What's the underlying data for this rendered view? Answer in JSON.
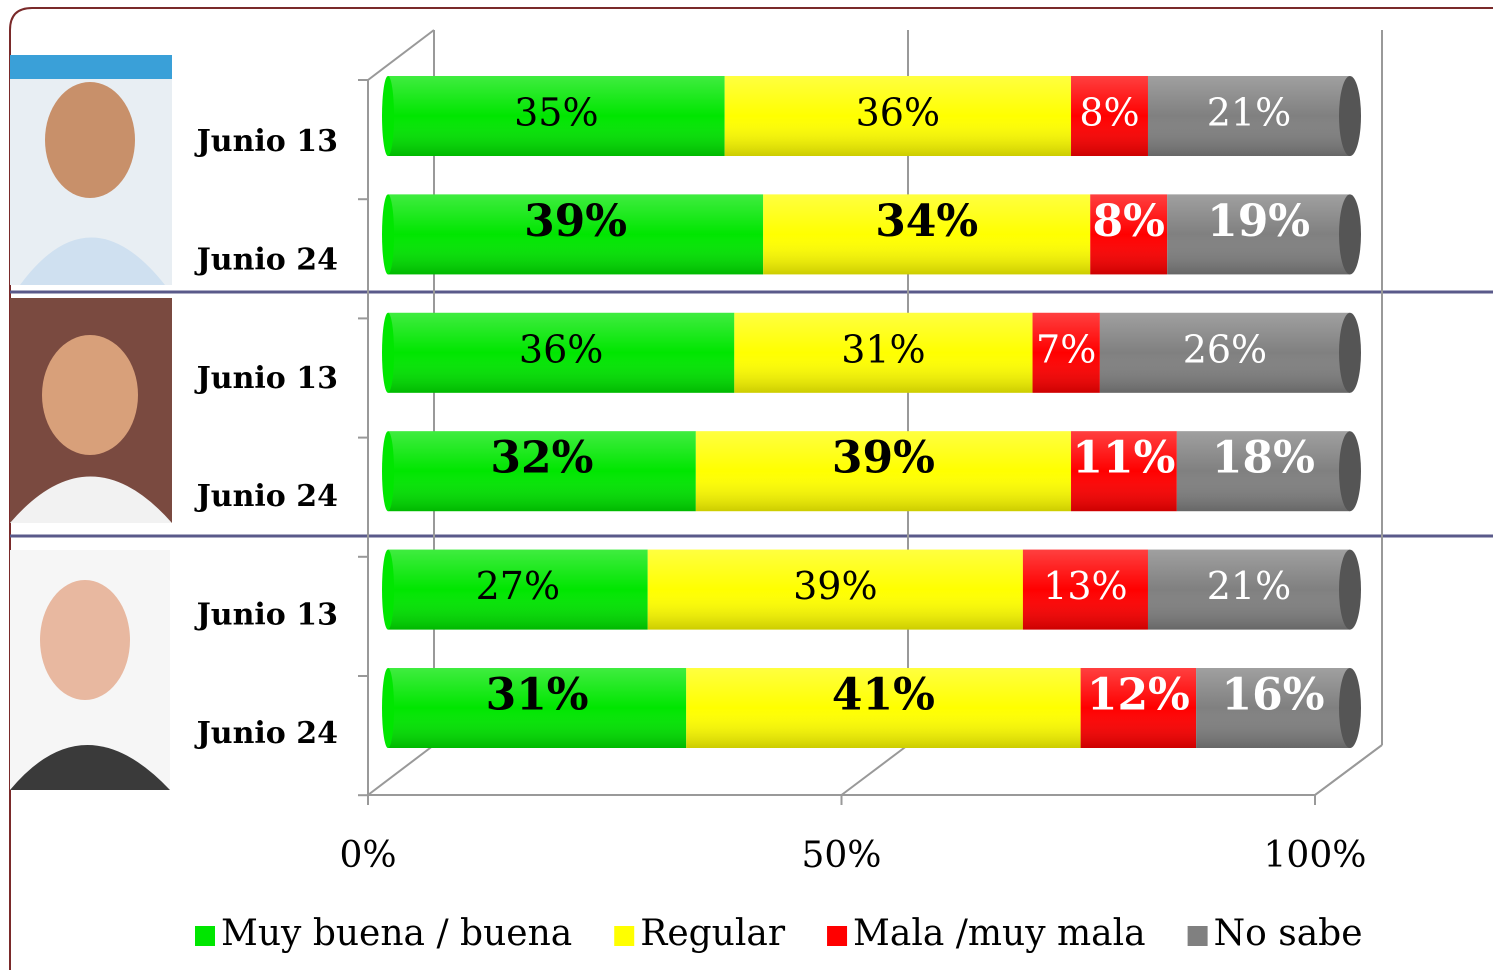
{
  "chart_data": {
    "type": "bar",
    "orientation": "horizontal",
    "stacked": true,
    "categories": [
      "Junio 13",
      "Junio 24",
      "Junio 13",
      "Junio 24",
      "Junio 13",
      "Junio 24"
    ],
    "series": [
      {
        "name": "Muy buena / buena",
        "color": "#00e600",
        "values": [
          35,
          39,
          36,
          32,
          27,
          31
        ],
        "value_labels": [
          "35%",
          "39%",
          "36%",
          "32%",
          "27%",
          "31%"
        ]
      },
      {
        "name": "Regular",
        "color": "#ffff00",
        "values": [
          36,
          34,
          31,
          39,
          39,
          41
        ],
        "value_labels": [
          "36%",
          "34%",
          "31%",
          "39%",
          "39%",
          "41%"
        ]
      },
      {
        "name": "Mala /muy mala",
        "color": "#ff0000",
        "values": [
          8,
          8,
          7,
          11,
          13,
          12
        ],
        "value_labels": [
          "8%",
          "8%",
          "7%",
          "11%",
          "13%",
          "12%"
        ]
      },
      {
        "name": "No sabe",
        "color": "#808080",
        "values": [
          21,
          19,
          26,
          18,
          21,
          16
        ],
        "value_labels": [
          "21%",
          "19%",
          "26%",
          "18%",
          "21%",
          "16%"
        ]
      }
    ],
    "xlim": [
      0,
      100
    ],
    "xticks": [
      {
        "value": 0,
        "label": "0%"
      },
      {
        "value": 50,
        "label": "50%"
      },
      {
        "value": 100,
        "label": "100%"
      }
    ],
    "grid": true,
    "legend": "bottom"
  }
}
